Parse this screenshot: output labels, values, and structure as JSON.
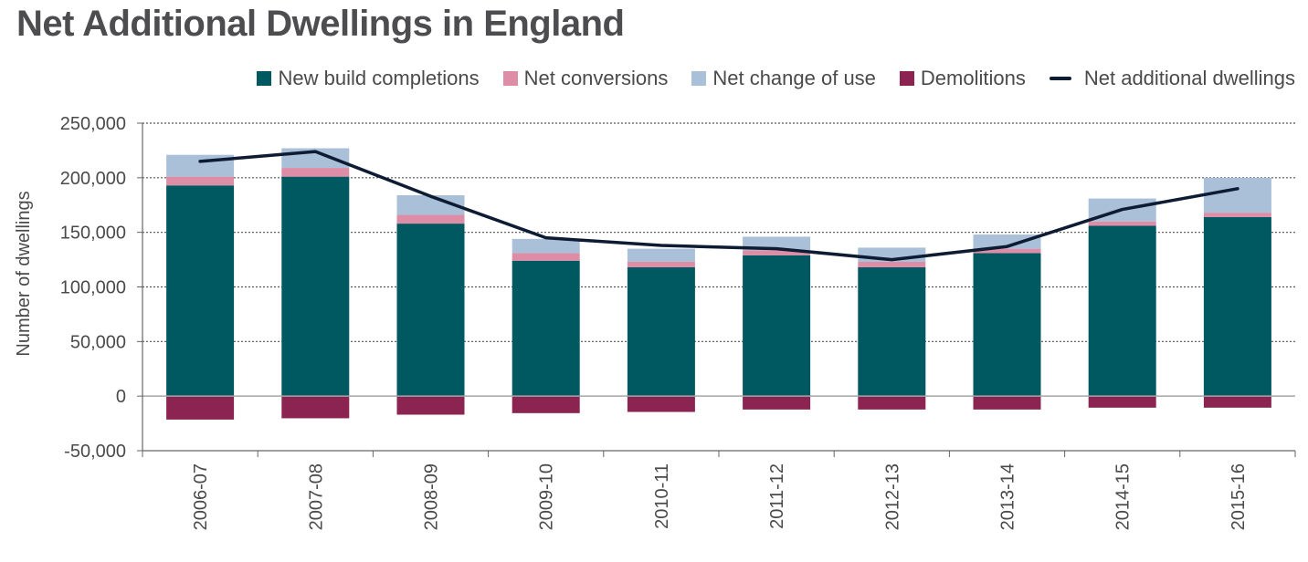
{
  "chart_data": {
    "type": "bar",
    "stacked": true,
    "title": "Net Additional Dwellings in England",
    "xlabel": "",
    "ylabel": "Number of dwellings",
    "ylim": [
      -50000,
      250000
    ],
    "yticks": [
      250000,
      200000,
      150000,
      100000,
      50000,
      0,
      -50000
    ],
    "ytick_labels": [
      "250,000",
      "200,000",
      "150,000",
      "100,000",
      "50,000",
      "0",
      "-50,000"
    ],
    "grid": true,
    "legend_position": "top-right",
    "categories": [
      "2006-07",
      "2007-08",
      "2008-09",
      "2009-10",
      "2010-11",
      "2011-12",
      "2012-13",
      "2013-14",
      "2014-15",
      "2015-16"
    ],
    "series": [
      {
        "name": "New build completions",
        "type": "bar",
        "color": "#005961",
        "values": [
          193000,
          201000,
          158000,
          124000,
          118000,
          129000,
          118000,
          131000,
          156000,
          164000
        ]
      },
      {
        "name": "Net conversions",
        "type": "bar",
        "color": "#dd8da6",
        "values": [
          8000,
          8000,
          8000,
          7000,
          5000,
          4500,
          5000,
          4000,
          4000,
          4000
        ]
      },
      {
        "name": "Net change of use",
        "type": "bar",
        "color": "#a9c0d8",
        "values": [
          20000,
          18000,
          18000,
          13000,
          12000,
          12500,
          13000,
          13000,
          21000,
          32000
        ]
      },
      {
        "name": "Demolitions",
        "type": "bar",
        "color": "#8c2452",
        "values": [
          -21500,
          -20300,
          -17000,
          -15600,
          -14500,
          -12300,
          -12300,
          -12300,
          -10600,
          -10600
        ]
      },
      {
        "name": "Net additional dwellings",
        "type": "line",
        "color": "#0d1b33",
        "values": [
          215000,
          224000,
          183000,
          145000,
          138000,
          135000,
          125000,
          137000,
          171000,
          190000
        ]
      }
    ]
  }
}
